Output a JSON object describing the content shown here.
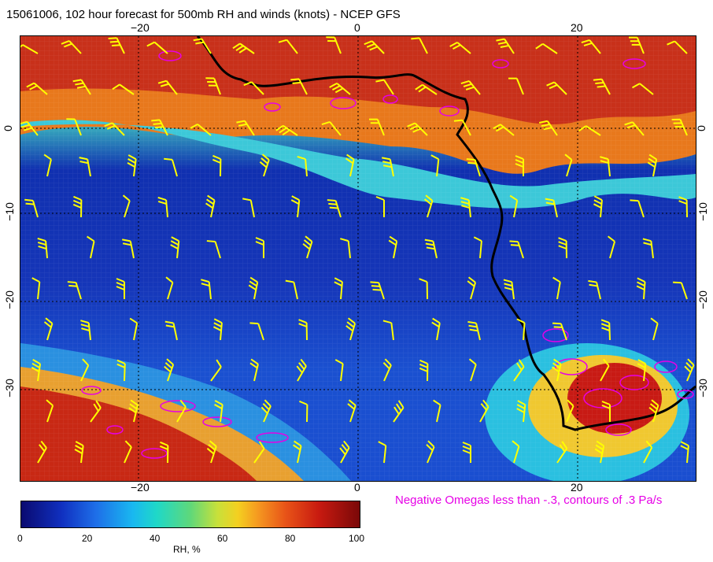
{
  "title": "15061006, 102 hour forecast for 500mb RH and winds (knots) - NCEP GFS",
  "map": {
    "variable": "500mb relative humidity with wind barbs",
    "overlay_note": "Negative Omegas less than -.3, contours of .3 Pa/s",
    "overlay_color": "#e600e6",
    "coastline_color": "#000000",
    "barb_color": "#ffff00",
    "lon_ticks_top": [
      "−20",
      "0",
      "20"
    ],
    "lon_ticks_bottom": [
      "−20",
      "0",
      "20"
    ],
    "lat_ticks_left": [
      "0",
      "−10",
      "−20",
      "−30"
    ],
    "lat_ticks_right": [
      "0",
      "−10",
      "−20",
      "−30"
    ]
  },
  "colorbar": {
    "label": "RH, %",
    "ticks": [
      "0",
      "20",
      "40",
      "60",
      "80",
      "100"
    ],
    "colors": [
      "#0a0a70",
      "#1e6ee8",
      "#19b8f0",
      "#5fd87a",
      "#f4d020",
      "#e85418",
      "#7a0808"
    ]
  }
}
